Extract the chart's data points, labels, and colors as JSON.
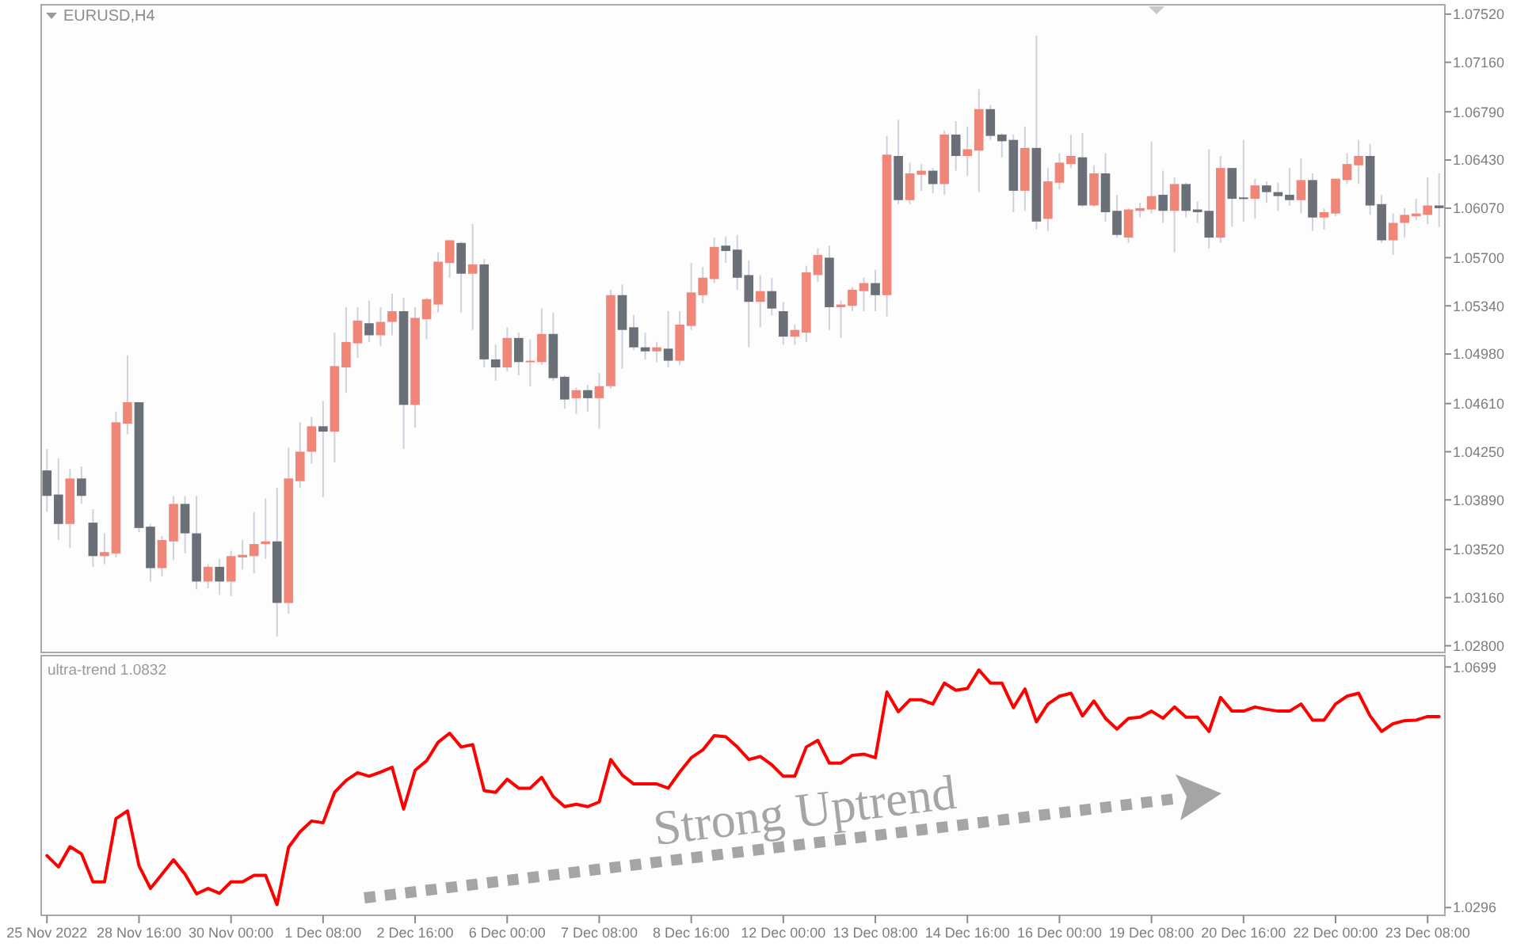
{
  "chart_data": [
    {
      "type": "candlestick",
      "title": "EURUSD,H4",
      "tick_labels": "y",
      "categories": [
        null,
        null,
        null,
        null,
        null,
        null,
        null,
        null,
        null,
        null,
        null,
        null,
        null,
        null,
        null,
        null,
        null,
        null,
        null,
        null,
        null,
        null,
        null,
        null,
        null,
        null,
        null,
        null,
        null,
        null,
        null,
        null,
        null,
        null,
        null,
        null,
        null,
        null,
        null,
        null,
        null,
        null,
        null,
        null,
        null,
        null,
        null,
        null,
        null,
        null,
        null,
        null,
        null,
        null,
        null,
        null,
        null,
        null,
        null,
        null,
        null,
        null,
        null,
        null,
        null,
        null,
        null,
        null,
        null,
        null,
        null,
        null,
        null,
        null,
        null,
        null,
        null,
        null,
        null,
        null,
        null,
        null,
        null,
        null,
        null,
        null,
        null,
        null,
        null,
        null,
        null,
        null,
        null,
        null,
        null,
        null,
        null,
        null,
        null,
        null,
        null,
        null,
        null,
        null,
        null,
        null,
        null,
        null,
        null,
        null,
        null,
        null,
        null,
        null,
        null,
        null,
        null,
        null,
        null,
        null,
        null,
        null
      ],
      "ohlc": [
        [
          1.0411,
          1.0427,
          1.038,
          1.0392
        ],
        [
          1.0393,
          1.042,
          1.0359,
          1.0371
        ],
        [
          1.0371,
          1.0412,
          1.0353,
          1.0405
        ],
        [
          1.0405,
          1.0414,
          1.0386,
          1.0392
        ],
        [
          1.0372,
          1.0382,
          1.0339,
          1.0347
        ],
        [
          1.0347,
          1.0364,
          1.0341,
          1.035
        ],
        [
          1.0349,
          1.0455,
          1.0346,
          1.0447
        ],
        [
          1.0446,
          1.0497,
          1.0438,
          1.0462
        ],
        [
          1.0462,
          1.0462,
          1.0365,
          1.0368
        ],
        [
          1.0369,
          1.0371,
          1.0328,
          1.0338
        ],
        [
          1.0338,
          1.0362,
          1.0332,
          1.0359
        ],
        [
          1.0358,
          1.0392,
          1.0344,
          1.0386
        ],
        [
          1.0386,
          1.0392,
          1.0349,
          1.0364
        ],
        [
          1.0364,
          1.0392,
          1.0322,
          1.0328
        ],
        [
          1.0328,
          1.0341,
          1.0323,
          1.0339
        ],
        [
          1.0339,
          1.0345,
          1.0318,
          1.0328
        ],
        [
          1.0328,
          1.0351,
          1.0317,
          1.0347
        ],
        [
          1.0346,
          1.0359,
          1.0337,
          1.0348
        ],
        [
          1.0347,
          1.038,
          1.0334,
          1.0356
        ],
        [
          1.0356,
          1.039,
          1.0345,
          1.0358
        ],
        [
          1.0358,
          1.0398,
          1.0287,
          1.0312
        ],
        [
          1.0312,
          1.0428,
          1.0304,
          1.0405
        ],
        [
          1.0403,
          1.0447,
          1.0398,
          1.0425
        ],
        [
          1.0425,
          1.0451,
          1.0416,
          1.0444
        ],
        [
          1.0444,
          1.0463,
          1.0391,
          1.044
        ],
        [
          1.044,
          1.0514,
          1.0417,
          1.0489
        ],
        [
          1.0488,
          1.0533,
          1.0469,
          1.0507
        ],
        [
          1.0506,
          1.0533,
          1.0495,
          1.0523
        ],
        [
          1.0521,
          1.0538,
          1.0507,
          1.0512
        ],
        [
          1.0512,
          1.0533,
          1.0504,
          1.0522
        ],
        [
          1.0522,
          1.0543,
          1.0512,
          1.053
        ],
        [
          1.053,
          1.054,
          1.0427,
          1.046
        ],
        [
          1.046,
          1.0533,
          1.0443,
          1.0525
        ],
        [
          1.0524,
          1.054,
          1.0509,
          1.0539
        ],
        [
          1.0535,
          1.0574,
          1.0529,
          1.0567
        ],
        [
          1.0566,
          1.0583,
          1.0555,
          1.0583
        ],
        [
          1.0581,
          1.0582,
          1.0529,
          1.0558
        ],
        [
          1.0558,
          1.0595,
          1.0516,
          1.0565
        ],
        [
          1.0565,
          1.0569,
          1.0488,
          1.0494
        ],
        [
          1.0494,
          1.0505,
          1.0478,
          1.0488
        ],
        [
          1.0488,
          1.0518,
          1.0485,
          1.051
        ],
        [
          1.051,
          1.0514,
          1.0482,
          1.0492
        ],
        [
          1.0492,
          1.0509,
          1.0474,
          1.0493
        ],
        [
          1.0492,
          1.0532,
          1.049,
          1.0513
        ],
        [
          1.0513,
          1.0529,
          1.0478,
          1.048
        ],
        [
          1.0481,
          1.0482,
          1.0457,
          1.0464
        ],
        [
          1.0465,
          1.0473,
          1.0453,
          1.0471
        ],
        [
          1.0471,
          1.0475,
          1.0455,
          1.0465
        ],
        [
          1.0465,
          1.0484,
          1.0442,
          1.0474
        ],
        [
          1.0474,
          1.0546,
          1.0472,
          1.0542
        ],
        [
          1.0542,
          1.055,
          1.0487,
          1.0516
        ],
        [
          1.0518,
          1.0527,
          1.0501,
          1.0503
        ],
        [
          1.0503,
          1.0514,
          1.0494,
          1.05
        ],
        [
          1.05,
          1.0507,
          1.0492,
          1.0503
        ],
        [
          1.0502,
          1.053,
          1.0488,
          1.0493
        ],
        [
          1.0493,
          1.053,
          1.049,
          1.052
        ],
        [
          1.0519,
          1.0566,
          1.0516,
          1.0544
        ],
        [
          1.0542,
          1.0563,
          1.0536,
          1.0555
        ],
        [
          1.0554,
          1.0585,
          1.0551,
          1.0578
        ],
        [
          1.0579,
          1.0586,
          1.0566,
          1.0575
        ],
        [
          1.0576,
          1.0587,
          1.0546,
          1.0555
        ],
        [
          1.0557,
          1.0568,
          1.0503,
          1.0537
        ],
        [
          1.0537,
          1.0557,
          1.0518,
          1.0545
        ],
        [
          1.0545,
          1.0555,
          1.0527,
          1.0532
        ],
        [
          1.053,
          1.0537,
          1.0505,
          1.0511
        ],
        [
          1.0511,
          1.052,
          1.0505,
          1.0516
        ],
        [
          1.0514,
          1.0564,
          1.0507,
          1.0559
        ],
        [
          1.0557,
          1.0577,
          1.0552,
          1.0572
        ],
        [
          1.057,
          1.0579,
          1.0516,
          1.0533
        ],
        [
          1.0533,
          1.0538,
          1.051,
          1.0535
        ],
        [
          1.0534,
          1.0548,
          1.053,
          1.0546
        ],
        [
          1.0545,
          1.0555,
          1.053,
          1.0551
        ],
        [
          1.0551,
          1.0561,
          1.053,
          1.0542
        ],
        [
          1.0542,
          1.0661,
          1.0526,
          1.0647
        ],
        [
          1.0646,
          1.0673,
          1.061,
          1.0613
        ],
        [
          1.0613,
          1.0641,
          1.061,
          1.0633
        ],
        [
          1.0632,
          1.064,
          1.062,
          1.0635
        ],
        [
          1.0635,
          1.0637,
          1.0618,
          1.0625
        ],
        [
          1.0625,
          1.0665,
          1.0617,
          1.0662
        ],
        [
          1.0662,
          1.0672,
          1.0635,
          1.0646
        ],
        [
          1.0646,
          1.0668,
          1.0631,
          1.0651
        ],
        [
          1.065,
          1.0696,
          1.0619,
          1.0681
        ],
        [
          1.0681,
          1.0684,
          1.0658,
          1.0661
        ],
        [
          1.0662,
          1.0663,
          1.0645,
          1.0657
        ],
        [
          1.0658,
          1.0662,
          1.0604,
          1.062
        ],
        [
          1.062,
          1.0668,
          1.0605,
          1.0652
        ],
        [
          1.0652,
          1.0736,
          1.0591,
          1.0597
        ],
        [
          1.0599,
          1.0637,
          1.059,
          1.0627
        ],
        [
          1.0626,
          1.0648,
          1.0621,
          1.0641
        ],
        [
          1.064,
          1.0662,
          1.0637,
          1.0646
        ],
        [
          1.0645,
          1.0663,
          1.0608,
          1.0609
        ],
        [
          1.0609,
          1.0639,
          1.0608,
          1.0633
        ],
        [
          1.0633,
          1.0648,
          1.0597,
          1.0604
        ],
        [
          1.0605,
          1.0617,
          1.0585,
          1.0587
        ],
        [
          1.0585,
          1.0607,
          1.0581,
          1.0606
        ],
        [
          1.0605,
          1.0611,
          1.06,
          1.0607
        ],
        [
          1.0606,
          1.0657,
          1.0603,
          1.0616
        ],
        [
          1.0617,
          1.0635,
          1.0596,
          1.0605
        ],
        [
          1.0605,
          1.063,
          1.0574,
          1.0625
        ],
        [
          1.0625,
          1.0626,
          1.06,
          1.0605
        ],
        [
          1.0606,
          1.0612,
          1.0596,
          1.0604
        ],
        [
          1.0605,
          1.0651,
          1.0577,
          1.0585
        ],
        [
          1.0585,
          1.0646,
          1.0581,
          1.0637
        ],
        [
          1.0637,
          1.0637,
          1.0593,
          1.0614
        ],
        [
          1.0615,
          1.0658,
          1.0597,
          1.0614
        ],
        [
          1.0614,
          1.0629,
          1.0599,
          1.0624
        ],
        [
          1.0624,
          1.0627,
          1.0611,
          1.0619
        ],
        [
          1.0619,
          1.0626,
          1.0605,
          1.0616
        ],
        [
          1.0617,
          1.0637,
          1.0609,
          1.0613
        ],
        [
          1.0613,
          1.0644,
          1.0603,
          1.0628
        ],
        [
          1.0628,
          1.0633,
          1.059,
          1.06
        ],
        [
          1.06,
          1.0607,
          1.0591,
          1.0604
        ],
        [
          1.0603,
          1.0629,
          1.0601,
          1.0629
        ],
        [
          1.0628,
          1.0648,
          1.0625,
          1.064
        ],
        [
          1.0639,
          1.0658,
          1.0625,
          1.0646
        ],
        [
          1.0646,
          1.0655,
          1.0602,
          1.0609
        ],
        [
          1.061,
          1.0617,
          1.0581,
          1.0583
        ],
        [
          1.0583,
          1.0603,
          1.0572,
          1.0596
        ],
        [
          1.0596,
          1.0607,
          1.0585,
          1.0602
        ],
        [
          1.0601,
          1.0614,
          1.0598,
          1.0603
        ],
        [
          1.0602,
          1.063,
          1.0595,
          1.0609
        ],
        [
          1.0609,
          1.0633,
          1.0593,
          1.0607
        ]
      ],
      "colors": [
        "#6b6f78",
        "#6b6f78",
        "#ef8677",
        "#6b6f78",
        "#6b6f78",
        "#ef8677",
        "#ef8677",
        "#ef8677",
        "#6b6f78",
        "#6b6f78",
        "#ef8677",
        "#ef8677",
        "#6b6f78",
        "#6b6f78",
        "#ef8677",
        "#6b6f78",
        "#ef8677",
        "#ef8677",
        "#ef8677",
        "#ef8677",
        "#6b6f78",
        "#ef8677",
        "#ef8677",
        "#ef8677",
        "#6b6f78",
        "#ef8677",
        "#ef8677",
        "#ef8677",
        "#6b6f78",
        "#ef8677",
        "#ef8677",
        "#6b6f78",
        "#ef8677",
        "#ef8677",
        "#ef8677",
        "#ef8677",
        "#6b6f78",
        "#ef8677",
        "#6b6f78",
        "#6b6f78",
        "#ef8677",
        "#6b6f78",
        "#ef8677",
        "#ef8677",
        "#6b6f78",
        "#6b6f78",
        "#ef8677",
        "#6b6f78",
        "#ef8677",
        "#ef8677",
        "#6b6f78",
        "#6b6f78",
        "#6b6f78",
        "#ef8677",
        "#6b6f78",
        "#ef8677",
        "#ef8677",
        "#ef8677",
        "#ef8677",
        "#6b6f78",
        "#6b6f78",
        "#6b6f78",
        "#ef8677",
        "#6b6f78",
        "#6b6f78",
        "#ef8677",
        "#ef8677",
        "#ef8677",
        "#6b6f78",
        "#ef8677",
        "#ef8677",
        "#ef8677",
        "#6b6f78",
        "#ef8677",
        "#6b6f78",
        "#ef8677",
        "#ef8677",
        "#6b6f78",
        "#ef8677",
        "#6b6f78",
        "#ef8677",
        "#ef8677",
        "#6b6f78",
        "#6b6f78",
        "#6b6f78",
        "#ef8677",
        "#6b6f78",
        "#ef8677",
        "#ef8677",
        "#ef8677",
        "#6b6f78",
        "#ef8677",
        "#6b6f78",
        "#6b6f78",
        "#ef8677",
        "#ef8677",
        "#ef8677",
        "#6b6f78",
        "#ef8677",
        "#6b6f78",
        "#6b6f78",
        "#6b6f78",
        "#ef8677",
        "#6b6f78",
        "#6b6f78",
        "#ef8677",
        "#6b6f78",
        "#6b6f78",
        "#6b6f78",
        "#ef8677",
        "#6b6f78",
        "#ef8677",
        "#ef8677",
        "#ef8677",
        "#ef8677",
        "#6b6f78",
        "#6b6f78",
        "#ef8677",
        "#ef8677",
        "#ef8677",
        "#ef8677",
        "#6b6f78"
      ],
      "ylim": [
        1.0275,
        1.0759
      ],
      "yticks": [
        {
          "value": 1.0752,
          "label": "1.07520"
        },
        {
          "value": 1.0716,
          "label": "1.07160"
        },
        {
          "value": 1.0679,
          "label": "1.06790"
        },
        {
          "value": 1.0643,
          "label": "1.06430"
        },
        {
          "value": 1.0607,
          "label": "1.06070"
        },
        {
          "value": 1.057,
          "label": "1.05700"
        },
        {
          "value": 1.0534,
          "label": "1.05340"
        },
        {
          "value": 1.0498,
          "label": "1.04980"
        },
        {
          "value": 1.0461,
          "label": "1.04610"
        },
        {
          "value": 1.0425,
          "label": "1.04250"
        },
        {
          "value": 1.0389,
          "label": "1.03890"
        },
        {
          "value": 1.0352,
          "label": "1.03520"
        },
        {
          "value": 1.0316,
          "label": "1.03160"
        },
        {
          "value": 1.028,
          "label": "1.02800"
        }
      ]
    },
    {
      "type": "line",
      "title": "ultra-trend 1.0832",
      "color": "#ff0000",
      "categories": [
        "25 Nov 2022",
        null,
        null,
        null,
        null,
        null,
        null,
        null,
        "28 Nov 16:00",
        null,
        null,
        null,
        null,
        null,
        null,
        null,
        "30 Nov 00:00",
        null,
        null,
        null,
        null,
        null,
        null,
        null,
        "1 Dec 08:00",
        null,
        null,
        null,
        null,
        null,
        null,
        null,
        "2 Dec 16:00",
        null,
        null,
        null,
        null,
        null,
        null,
        null,
        "6 Dec 00:00",
        null,
        null,
        null,
        null,
        null,
        null,
        null,
        "7 Dec 08:00",
        null,
        null,
        null,
        null,
        null,
        null,
        null,
        "8 Dec 16:00",
        null,
        null,
        null,
        null,
        null,
        null,
        null,
        "12 Dec 00:00",
        null,
        null,
        null,
        null,
        null,
        null,
        null,
        "13 Dec 08:00",
        null,
        null,
        null,
        null,
        null,
        null,
        null,
        "14 Dec 16:00",
        null,
        null,
        null,
        null,
        null,
        null,
        null,
        "16 Dec 00:00",
        null,
        null,
        null,
        null,
        null,
        null,
        null,
        "19 Dec 08:00",
        null,
        null,
        null,
        null,
        null,
        null,
        null,
        "20 Dec 16:00",
        null,
        null,
        null,
        null,
        null,
        null,
        null,
        "22 Dec 00:00",
        null,
        null,
        null,
        null,
        null,
        null,
        null,
        "23 Dec 08:00",
        null
      ],
      "values": [
        1.0383,
        1.0364,
        1.0398,
        1.0386,
        1.0339,
        1.0339,
        1.0445,
        1.0458,
        1.0366,
        1.0328,
        1.0352,
        1.0376,
        1.0352,
        1.0319,
        1.0328,
        1.032,
        1.0339,
        1.0339,
        1.035,
        1.035,
        1.0301,
        1.0397,
        1.0423,
        1.0441,
        1.0438,
        1.0489,
        1.0509,
        1.0522,
        1.0516,
        1.0523,
        1.0531,
        1.0461,
        1.0526,
        1.0542,
        1.0573,
        1.0588,
        1.0565,
        1.0569,
        1.0492,
        1.0489,
        1.0511,
        1.0496,
        1.0496,
        1.0514,
        1.0482,
        1.0465,
        1.0469,
        1.0465,
        1.0473,
        1.0544,
        1.0518,
        1.0503,
        1.0503,
        1.0503,
        1.0496,
        1.0523,
        1.0547,
        1.056,
        1.0584,
        1.0582,
        1.0565,
        1.0544,
        1.0549,
        1.0535,
        1.0516,
        1.0516,
        1.0565,
        1.0576,
        1.0538,
        1.0538,
        1.0551,
        1.0553,
        1.0547,
        1.0657,
        1.0624,
        1.0644,
        1.0644,
        1.0637,
        1.0672,
        1.066,
        1.0663,
        1.0694,
        1.0672,
        1.0672,
        1.0631,
        1.0662,
        1.0607,
        1.0637,
        1.065,
        1.0655,
        1.0617,
        1.0642,
        1.0613,
        1.0595,
        1.0613,
        1.0615,
        1.0625,
        1.0613,
        1.0632,
        1.0615,
        1.0615,
        1.0591,
        1.0648,
        1.0625,
        1.0625,
        1.0632,
        1.0628,
        1.0625,
        1.0625,
        1.0637,
        1.061,
        1.061,
        1.0637,
        1.065,
        1.0655,
        1.0617,
        1.0591,
        1.0604,
        1.0609,
        1.061,
        1.0616,
        1.0616
      ],
      "ylim": [
        1.0283,
        1.0718
      ],
      "yticks": [
        1.0699,
        1.0296
      ],
      "annotations": [
        "Strong Uptrend"
      ]
    }
  ]
}
